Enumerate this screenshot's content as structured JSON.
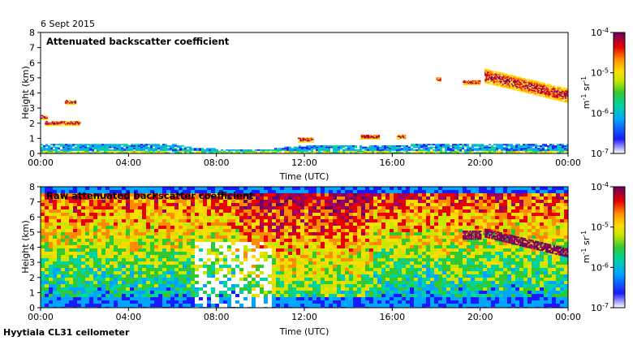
{
  "date_label": "6 Sept 2015",
  "footer_label": "Hyytiala CL31 ceilometer",
  "colors": {
    "background": "#ffffff",
    "colormap": [
      "#ffffff",
      "#1a1aff",
      "#00a5ff",
      "#00d2a0",
      "#32c832",
      "#c8e600",
      "#ffdc00",
      "#ff8c00",
      "#e60000",
      "#a0005a",
      "#6e0064"
    ]
  },
  "chart_data": [
    {
      "type": "heatmap",
      "title": "Attenuated backscatter coefficient",
      "xlabel": "Time (UTC)",
      "ylabel": "Height (km)",
      "xlim": [
        0,
        24
      ],
      "ylim": [
        0,
        8
      ],
      "xticks": [
        "00:00",
        "04:00",
        "08:00",
        "12:00",
        "16:00",
        "20:00",
        "00:00"
      ],
      "yticks": [
        "0",
        "1",
        "2",
        "3",
        "4",
        "5",
        "6",
        "7",
        "8"
      ],
      "colorbar": {
        "label": "m-1 sr-1",
        "scale": "log",
        "range": [
          1e-07,
          0.0001
        ],
        "tick_labels": [
          "10-7",
          "10-6",
          "10-5",
          "10-4"
        ]
      }
    },
    {
      "type": "heatmap",
      "title": "Raw attenuated backscatter coefficient",
      "xlabel": "Time (UTC)",
      "ylabel": "Height (km)",
      "xlim": [
        0,
        24
      ],
      "ylim": [
        0,
        8
      ],
      "xticks": [
        "00:00",
        "04:00",
        "08:00",
        "12:00",
        "16:00",
        "20:00",
        "00:00"
      ],
      "yticks": [
        "0",
        "1",
        "2",
        "3",
        "4",
        "5",
        "6",
        "7",
        "8"
      ],
      "colorbar": {
        "label": "m-1 sr-1",
        "scale": "log",
        "range": [
          1e-07,
          0.0001
        ],
        "tick_labels": [
          "10-7",
          "10-6",
          "10-5",
          "10-4"
        ]
      }
    }
  ],
  "features": {
    "boundary_layer_km": [
      {
        "t": 0,
        "h": 0.6
      },
      {
        "t": 6,
        "h": 0.6
      },
      {
        "t": 7,
        "h": 0.3
      },
      {
        "t": 10,
        "h": 0.2
      },
      {
        "t": 12,
        "h": 0.5
      },
      {
        "t": 24,
        "h": 0.6
      }
    ],
    "cloud_layers": [
      {
        "t0": 0.0,
        "t1": 0.3,
        "h": 2.3
      },
      {
        "t0": 0.2,
        "t1": 1.8,
        "h": 1.9
      },
      {
        "t0": 1.1,
        "t1": 1.6,
        "h": 3.3
      },
      {
        "t0": 11.7,
        "t1": 12.4,
        "h": 0.8
      },
      {
        "t0": 14.5,
        "t1": 15.4,
        "h": 1.0
      },
      {
        "t0": 16.2,
        "t1": 16.6,
        "h": 1.0
      },
      {
        "t0": 18.0,
        "t1": 18.2,
        "h": 4.8
      },
      {
        "t0": 19.2,
        "t1": 20.0,
        "h": 4.6
      },
      {
        "t0": 20.2,
        "t1": 24.0,
        "h": 4.0
      }
    ]
  }
}
